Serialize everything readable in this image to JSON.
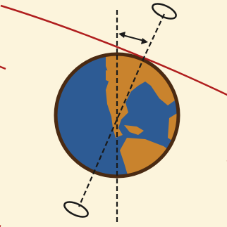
{
  "colors": {
    "background": "#fcf4dc",
    "ocean": "#2d5b94",
    "land": "#c9832d",
    "outline": "#4a2a12",
    "orbit": "#b01e1e",
    "axis": "#1a1a1a"
  },
  "diagram": {
    "elements": [
      "earth-globe",
      "vertical-reference-line",
      "tilted-rotation-axis",
      "tilt-angle-arrow",
      "orbit-ellipse"
    ]
  }
}
